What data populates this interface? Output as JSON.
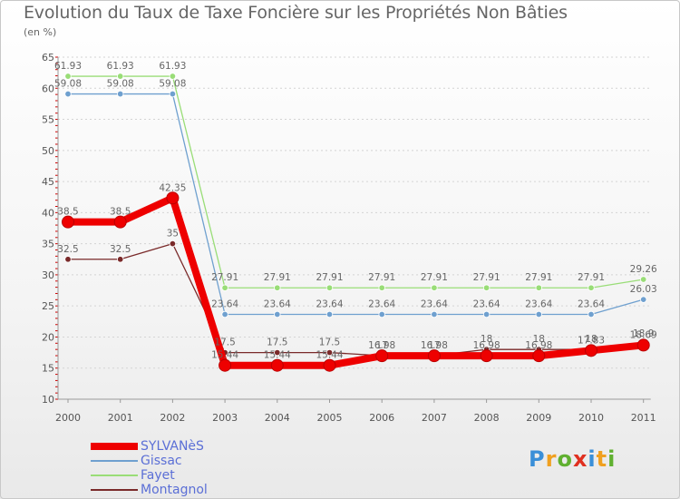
{
  "title": "Evolution du Taux de Taxe Foncière sur les Propriétés Non Bâties",
  "subtitle": "(en %)",
  "logo": {
    "text": "Proxiti",
    "letters": [
      "P",
      "r",
      "o",
      "x",
      "i",
      "t",
      "i"
    ],
    "colors": [
      "#3a8fd8",
      "#f0a020",
      "#60b030",
      "#e03020",
      "#3a8fd8",
      "#f0a020",
      "#60b030"
    ]
  },
  "chart_data": {
    "type": "line",
    "title": "Evolution du Taux de Taxe Foncière sur les Propriétés Non Bâties",
    "ylabel": "(en %)",
    "xlabel": "",
    "ylim": [
      10,
      65
    ],
    "yticks": [
      "10",
      "15",
      "20",
      "25",
      "30",
      "35",
      "40",
      "45",
      "50",
      "55",
      "60",
      "65"
    ],
    "categories": [
      "2000",
      "2001",
      "2002",
      "2003",
      "2004",
      "2005",
      "2006",
      "2007",
      "2008",
      "2009",
      "2010",
      "2011"
    ],
    "legend_position": "bottom-left",
    "series": [
      {
        "name": "SYLVANèS",
        "color": "#ee0000",
        "width": "thick",
        "values": [
          38.5,
          38.5,
          42.35,
          15.44,
          15.44,
          15.44,
          16.98,
          16.98,
          16.98,
          16.98,
          17.83,
          18.69
        ],
        "labels": [
          "38.5",
          "38.5",
          "42.35",
          "15.44",
          "15.44",
          "15.44",
          "16.98",
          "16.98",
          "16.98",
          "16.98",
          "17.83",
          "18.69"
        ]
      },
      {
        "name": "Gissac",
        "color": "#6fa0cf",
        "width": "thin",
        "values": [
          59.08,
          59.08,
          59.08,
          23.64,
          23.64,
          23.64,
          23.64,
          23.64,
          23.64,
          23.64,
          23.64,
          26.03
        ],
        "labels": [
          "59.08",
          "59.08",
          "59.08",
          "23.64",
          "23.64",
          "23.64",
          "23.64",
          "23.64",
          "23.64",
          "23.64",
          "23.64",
          "26.03"
        ]
      },
      {
        "name": "Fayet",
        "color": "#99dd77",
        "width": "thin",
        "values": [
          61.93,
          61.93,
          61.93,
          27.91,
          27.91,
          27.91,
          27.91,
          27.91,
          27.91,
          27.91,
          27.91,
          29.26
        ],
        "labels": [
          "61.93",
          "61.93",
          "61.93",
          "27.91",
          "27.91",
          "27.91",
          "27.91",
          "27.91",
          "27.91",
          "27.91",
          "27.91",
          "29.26"
        ]
      },
      {
        "name": "Montagnol",
        "color": "#7a2a2a",
        "width": "thin",
        "values": [
          32.5,
          32.5,
          35,
          17.5,
          17.5,
          17.5,
          17,
          17,
          18,
          18,
          18,
          18.9
        ],
        "labels": [
          "32.5",
          "32.5",
          "35",
          "17.5",
          "17.5",
          "17.5",
          "17",
          "17",
          "18",
          "18",
          "18",
          "18.9"
        ]
      }
    ]
  }
}
